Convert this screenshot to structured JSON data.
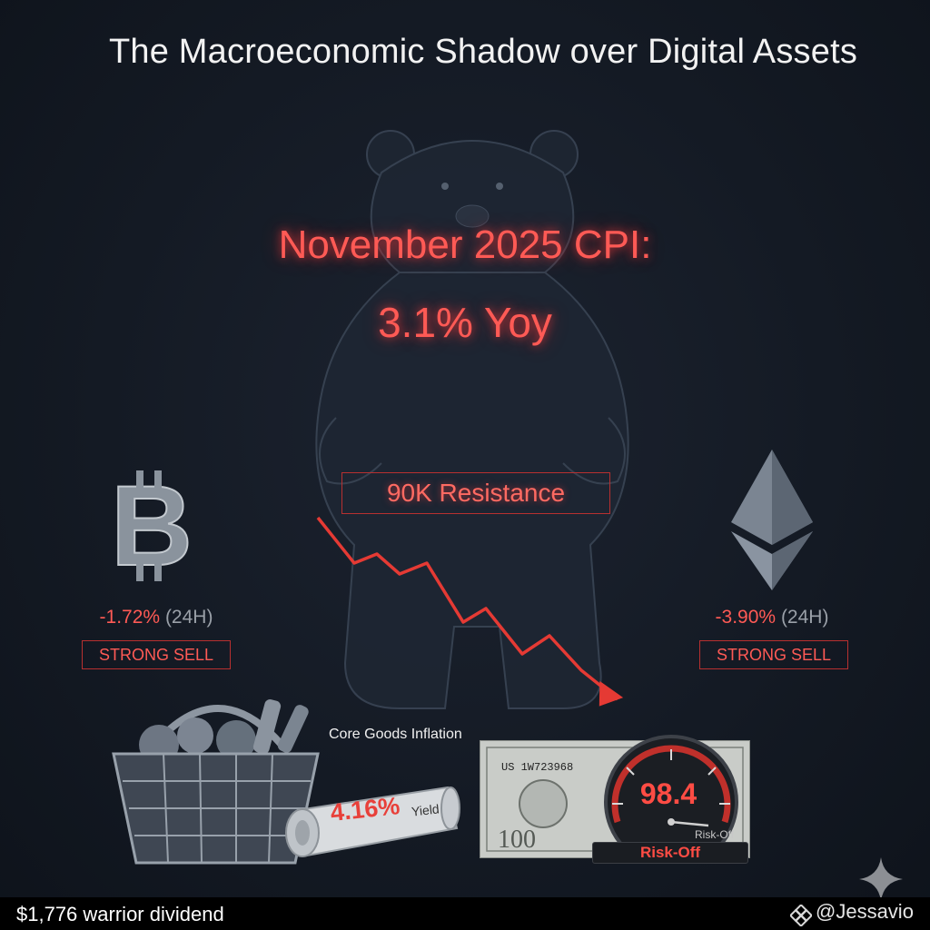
{
  "title": "The Macroeconomic Shadow over Digital Assets",
  "headline": {
    "line1": "November 2025 CPI:",
    "line2": "3.1% Yoy"
  },
  "resistance_label": "90K Resistance",
  "assets": [
    {
      "icon": "bitcoin-icon",
      "change": "-1.72%",
      "period": "(24H)",
      "signal": "STRONG SELL"
    },
    {
      "icon": "ethereum-icon",
      "change": "-3.90%",
      "period": "(24H)",
      "signal": "STRONG SELL"
    }
  ],
  "core_goods_label": "Core Goods Inflation",
  "yield": {
    "value": "4.16%",
    "label": "Yield"
  },
  "bill": {
    "serial": "US 1W723968"
  },
  "dollar_index": {
    "value": "98.4",
    "caption": "Risk-Off",
    "small_label": "Risk-Off"
  },
  "footer": {
    "text": "$1,776 warrior dividend"
  },
  "brand": {
    "name": "@Jessavio"
  },
  "colors": {
    "accent_red": "#ff5a55",
    "background": "#141a24"
  }
}
